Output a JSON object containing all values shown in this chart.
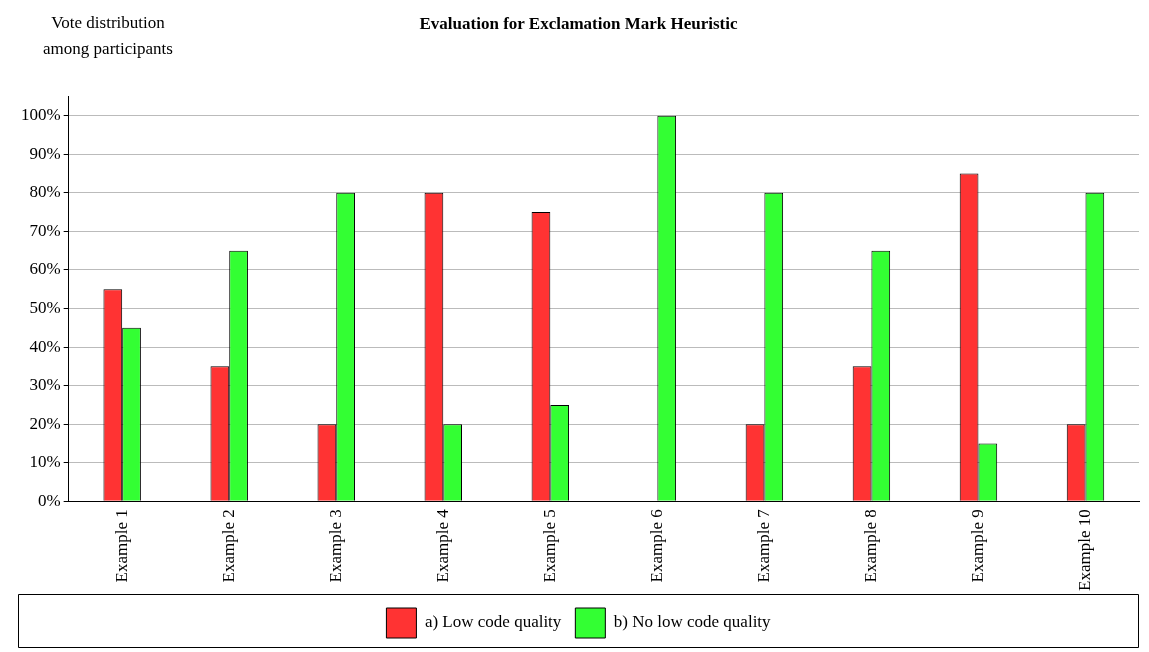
{
  "chart_data": {
    "type": "bar",
    "title": "Evaluation for Exclamation Mark Heuristic",
    "ylabel": "Vote distribution among participants",
    "categories": [
      "Example 1",
      "Example 2",
      "Example 3",
      "Example 4",
      "Example 5",
      "Example 6",
      "Example 7",
      "Example 8",
      "Example 9",
      "Example 10"
    ],
    "series": [
      {
        "name": "a) Low code quality",
        "color": "#ff3333",
        "values": [
          55,
          35,
          20,
          80,
          75,
          0,
          20,
          35,
          85,
          20
        ]
      },
      {
        "name": "b) No low code quality",
        "color": "#33ff33",
        "values": [
          45,
          65,
          80,
          20,
          25,
          100,
          80,
          65,
          15,
          80
        ]
      }
    ],
    "ylim": [
      0,
      105
    ],
    "yticks": [
      {
        "value": 0,
        "label": "0%"
      },
      {
        "value": 10,
        "label": "10%"
      },
      {
        "value": 20,
        "label": "20%"
      },
      {
        "value": 30,
        "label": "30%"
      },
      {
        "value": 40,
        "label": "40%"
      },
      {
        "value": 50,
        "label": "50%"
      },
      {
        "value": 60,
        "label": "60%"
      },
      {
        "value": 70,
        "label": "70%"
      },
      {
        "value": 80,
        "label": "80%"
      },
      {
        "value": 90,
        "label": "90%"
      },
      {
        "value": 100,
        "label": "100%"
      }
    ],
    "grid": "y",
    "legend": "bottom"
  }
}
